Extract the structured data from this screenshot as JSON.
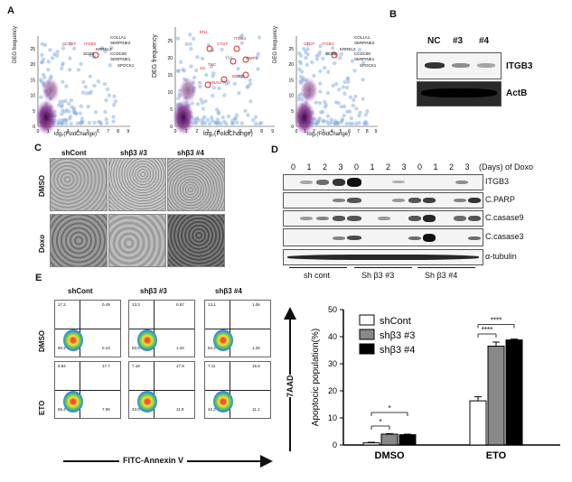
{
  "panels": {
    "a": "A",
    "b": "B",
    "c": "C",
    "d": "D",
    "e": "E"
  },
  "panel_a": {
    "ylabel": "DEG frequency",
    "xlabel": "log₂(FoldChange)",
    "yticks": [
      "0",
      "5",
      "10",
      "15",
      "20",
      "25"
    ],
    "xticks": [
      "0",
      "1",
      "2",
      "3",
      "4",
      "5",
      "6",
      "7",
      "8",
      "9"
    ],
    "plot1_red": [
      "CTGF",
      "ITGB3"
    ],
    "plot1_black": [
      "COL1A1",
      "SERPINE2",
      "KRREL3",
      "SCD5",
      "CCDC80",
      "SERPINE1",
      "SPOCK1"
    ],
    "plot2_red": [
      "EN1",
      "ITGB3",
      "CTGF",
      "MMP2",
      "DDR2",
      "SNAI2",
      "TNC",
      "SS"
    ],
    "plot3_red": [
      "CTGF",
      "ITGB3"
    ],
    "plot3_black": [
      "COL1A1",
      "SERPINE2",
      "KRREL3",
      "SCD5",
      "CCDC80",
      "SERPINE1",
      "SPOCK1"
    ]
  },
  "panel_b": {
    "lanes": [
      "NC",
      "#3",
      "#4"
    ],
    "rows": [
      "ITGB3",
      "ActB"
    ]
  },
  "panel_c": {
    "cols": [
      "shCont",
      "shβ3 #3",
      "shβ3 #4"
    ],
    "rows": [
      "DMSO",
      "Doxo"
    ]
  },
  "panel_d": {
    "days": [
      "0",
      "1",
      "2",
      "3",
      "0",
      "1",
      "2",
      "3",
      "0",
      "1",
      "2",
      "3"
    ],
    "days_label": "(Days) of Doxo",
    "rows": [
      "ITGB3",
      "C.PARP",
      "C.casase9",
      "C.casase3",
      "α-tubulin"
    ],
    "groups": [
      "sh cont",
      "Sh β3 #3",
      "Sh β3 #4"
    ]
  },
  "panel_e": {
    "cols": [
      "shCont",
      "shβ3 #3",
      "shβ3 #4"
    ],
    "rows": [
      "DMSO",
      "ETO"
    ],
    "xaxis": "FITC-Annexin V",
    "yaxis": "7AAD",
    "quadrants": [
      [
        [
          "17.2",
          "0.49",
          "80.2",
          "0.13"
        ],
        [
          "13.3",
          "0.57",
          "83.5",
          "1.34"
        ],
        [
          "13.1",
          "1.06",
          "84.4",
          "1.26"
        ]
      ],
      [
        [
          "6.84",
          "17.7",
          "66.4",
          "7.06"
        ],
        [
          "7.18",
          "17.9",
          "43.0",
          "11.8"
        ],
        [
          "7.11",
          "15.5",
          "42.2",
          "11.1"
        ]
      ]
    ]
  },
  "chart_data": {
    "type": "bar",
    "categories": [
      "DMSO",
      "ETO"
    ],
    "series": [
      {
        "name": "shCont",
        "values": [
          0.8,
          16.3
        ],
        "errors": [
          0.2,
          1.5
        ],
        "color": "#ffffff"
      },
      {
        "name": "shβ3 #3",
        "values": [
          4.0,
          36.5
        ],
        "errors": [
          0.2,
          1.5
        ],
        "color": "#888888"
      },
      {
        "name": "shβ3 #4",
        "values": [
          3.8,
          38.8
        ],
        "errors": [
          0.2,
          0.3
        ],
        "color": "#000000"
      }
    ],
    "ylabel": "Apoptocic population(%)",
    "yticks": [
      "0",
      "10",
      "20",
      "30",
      "40",
      "50"
    ],
    "ylim": [
      0,
      50
    ],
    "legend": "top-left",
    "significance": [
      "*",
      "*",
      "****",
      "****"
    ]
  }
}
